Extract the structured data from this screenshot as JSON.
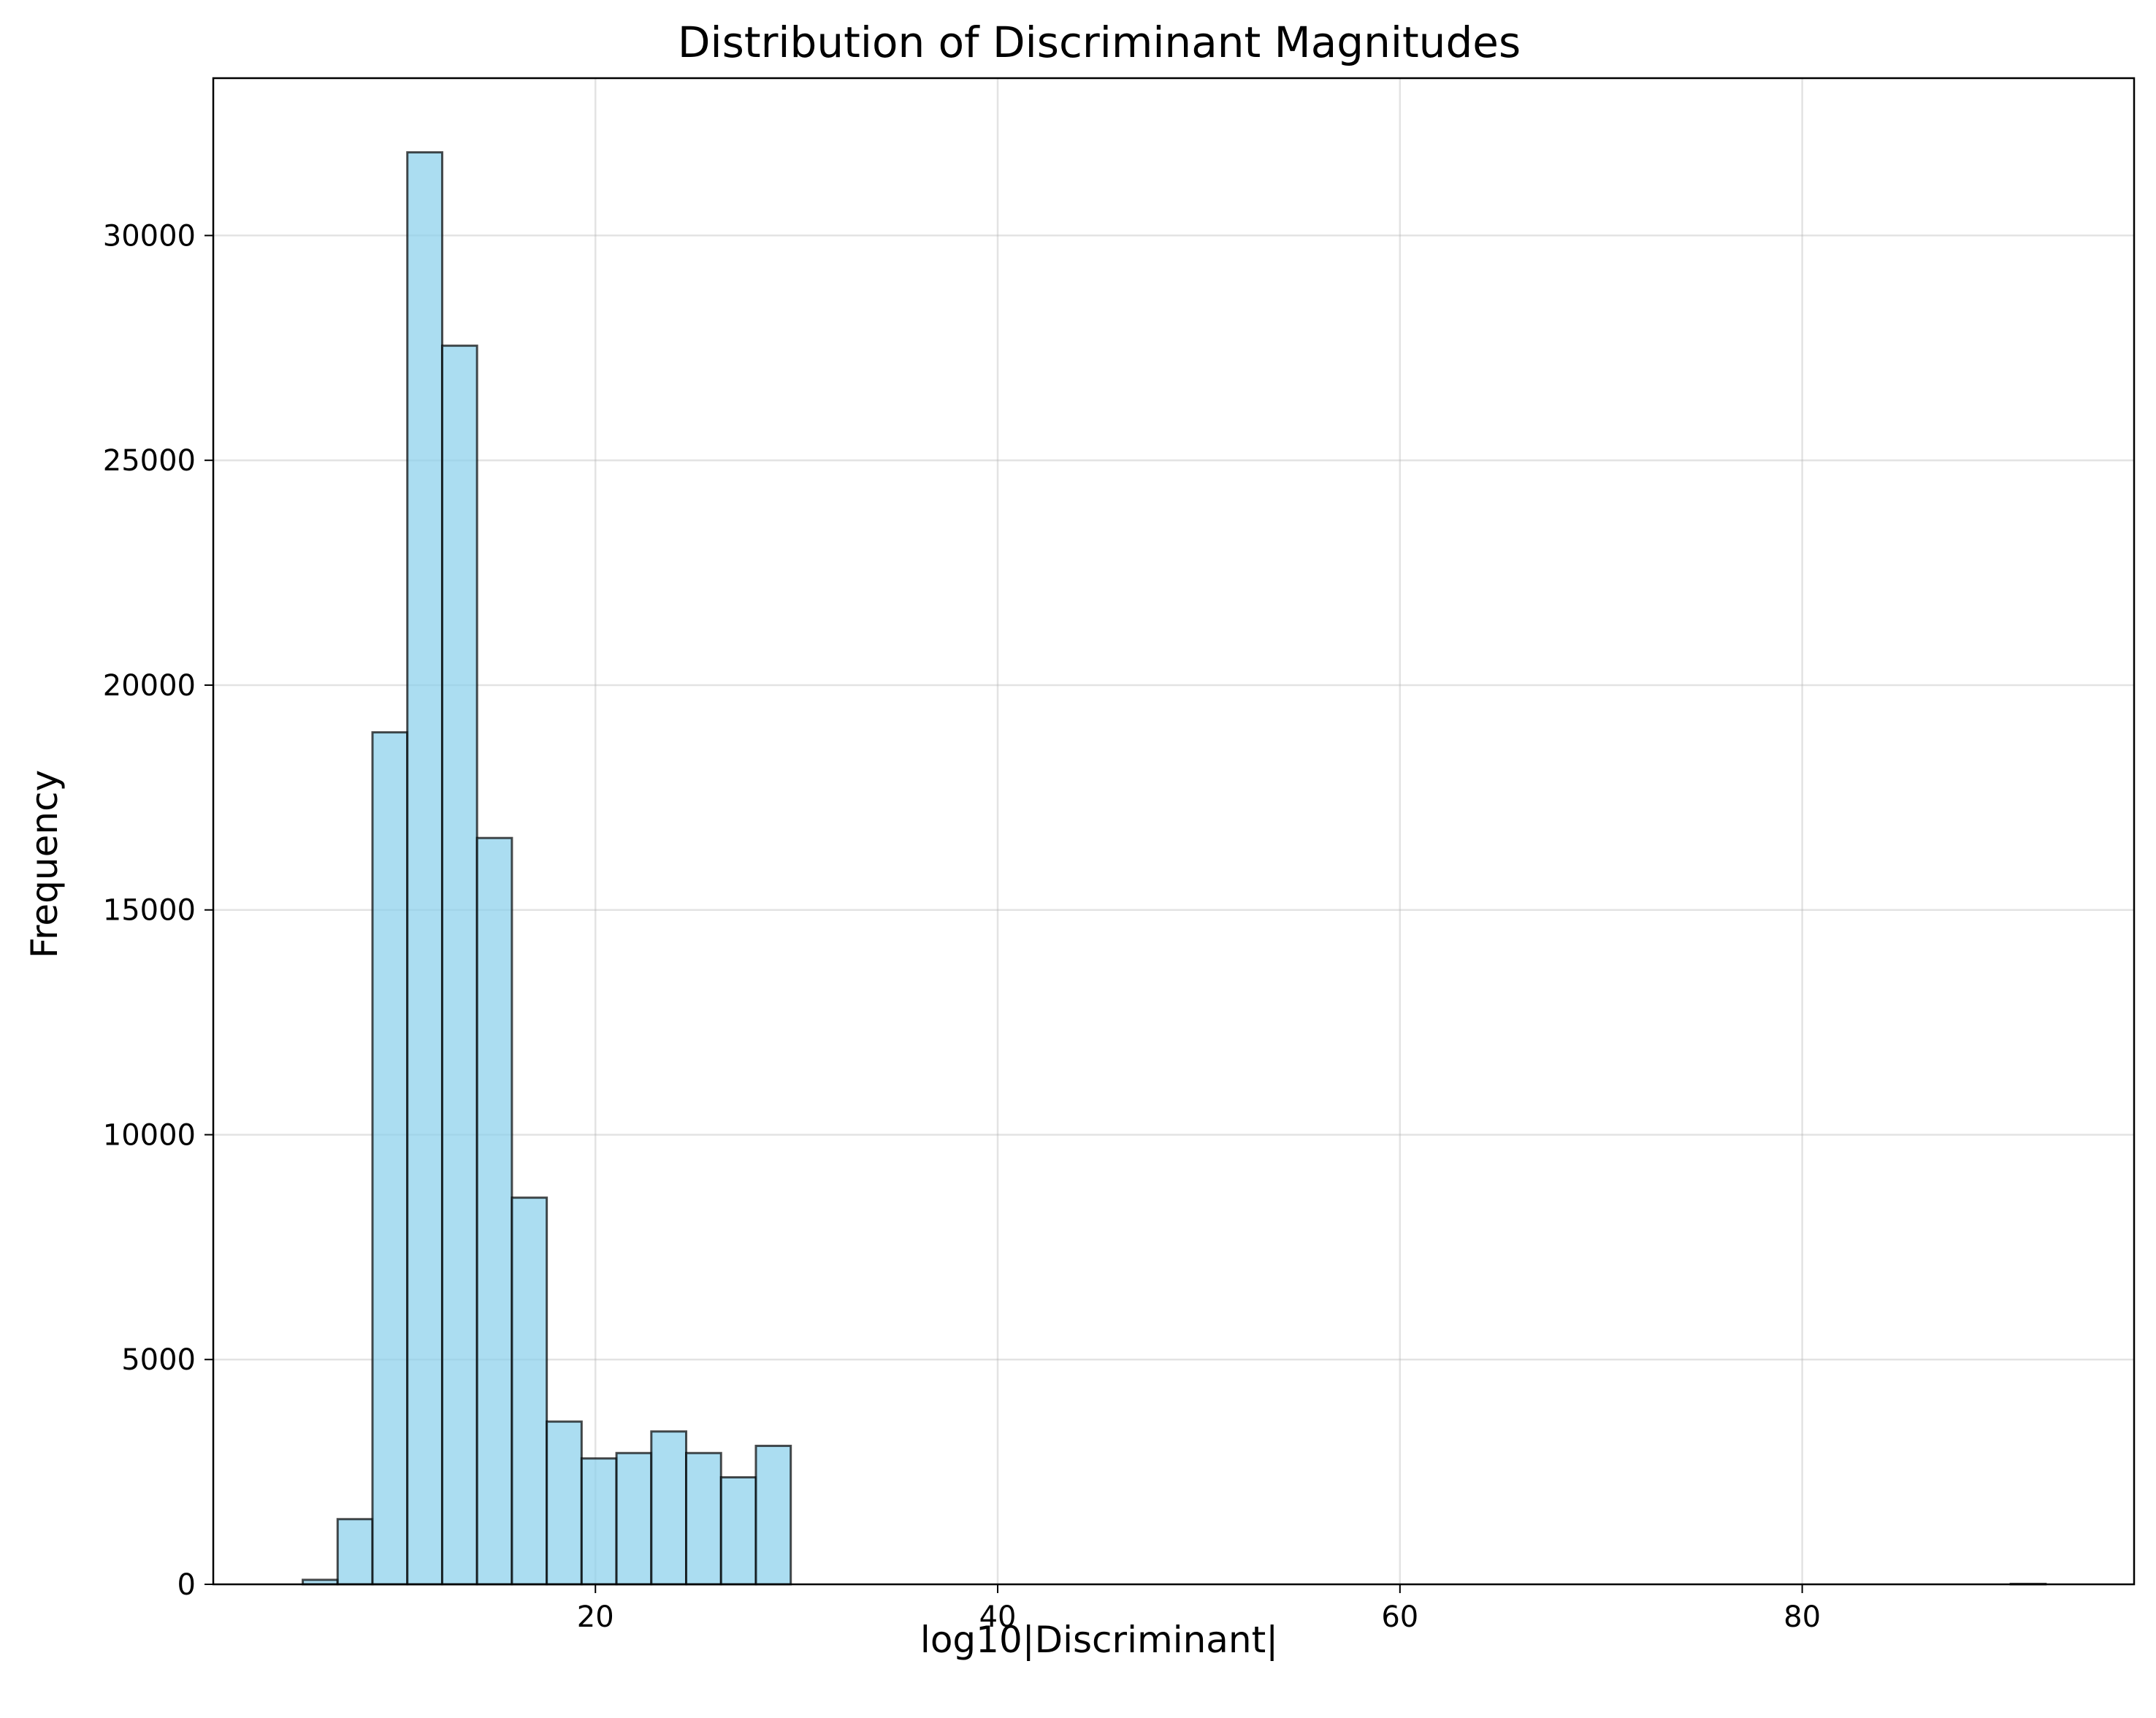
{
  "chart_data": {
    "type": "bar",
    "title": "Distribution of Discriminant Magnitudes",
    "xlabel": "log10|Discriminant|",
    "ylabel": "Frequency",
    "xlim": [
      1.0,
      96.5
    ],
    "ylim": [
      0,
      33500
    ],
    "xticks": [
      20,
      40,
      60,
      80
    ],
    "yticks": [
      0,
      5000,
      10000,
      15000,
      20000,
      25000,
      30000
    ],
    "grid": true,
    "bar_color": "#87CEEB",
    "edge_color": "#000000",
    "bins": {
      "start": 5.45,
      "width": 1.733,
      "counts": [
        100,
        1450,
        18950,
        31850,
        27550,
        16600,
        8600,
        3620,
        2800,
        2920,
        3400,
        2920,
        2380,
        3080,
        0,
        0,
        0,
        0,
        0,
        0,
        0,
        0,
        0,
        0,
        0,
        0,
        0,
        0,
        0,
        0,
        0,
        0,
        0,
        0,
        0,
        0,
        0,
        0,
        0,
        0,
        0,
        0,
        0,
        0,
        0,
        0,
        0,
        0,
        0,
        10
      ]
    }
  }
}
